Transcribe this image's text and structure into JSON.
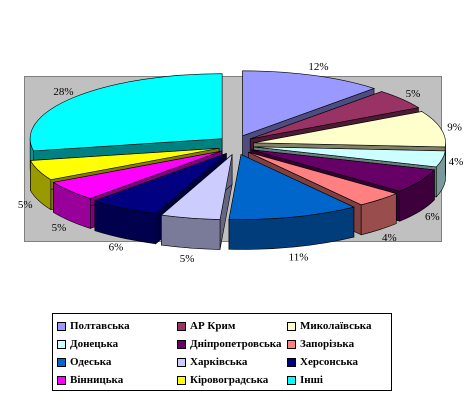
{
  "chart_data": {
    "type": "pie",
    "title": "",
    "categories": [
      "Полтавська",
      "АР Крим",
      "Миколаївська",
      "Донецька",
      "Дніпропетровська",
      "Запорізька",
      "Одеська",
      "Харківська",
      "Херсонська",
      "Вінницька",
      "Кіровоградська",
      "Інші"
    ],
    "values": [
      12,
      5,
      9,
      4,
      6,
      4,
      11,
      5,
      6,
      5,
      5,
      28
    ],
    "labels": [
      "12%",
      "5%",
      "9%",
      "4%",
      "6%",
      "4%",
      "11%",
      "5%",
      "6%",
      "5%",
      "5%",
      "28%"
    ],
    "colors": [
      "#9999ff",
      "#993366",
      "#ffffcc",
      "#ccffff",
      "#660066",
      "#ff8080",
      "#0066cc",
      "#ccccff",
      "#000080",
      "#ff00ff",
      "#ffff00",
      "#00ffff"
    ],
    "exploded": true,
    "view": "3d",
    "legend_position": "bottom"
  }
}
